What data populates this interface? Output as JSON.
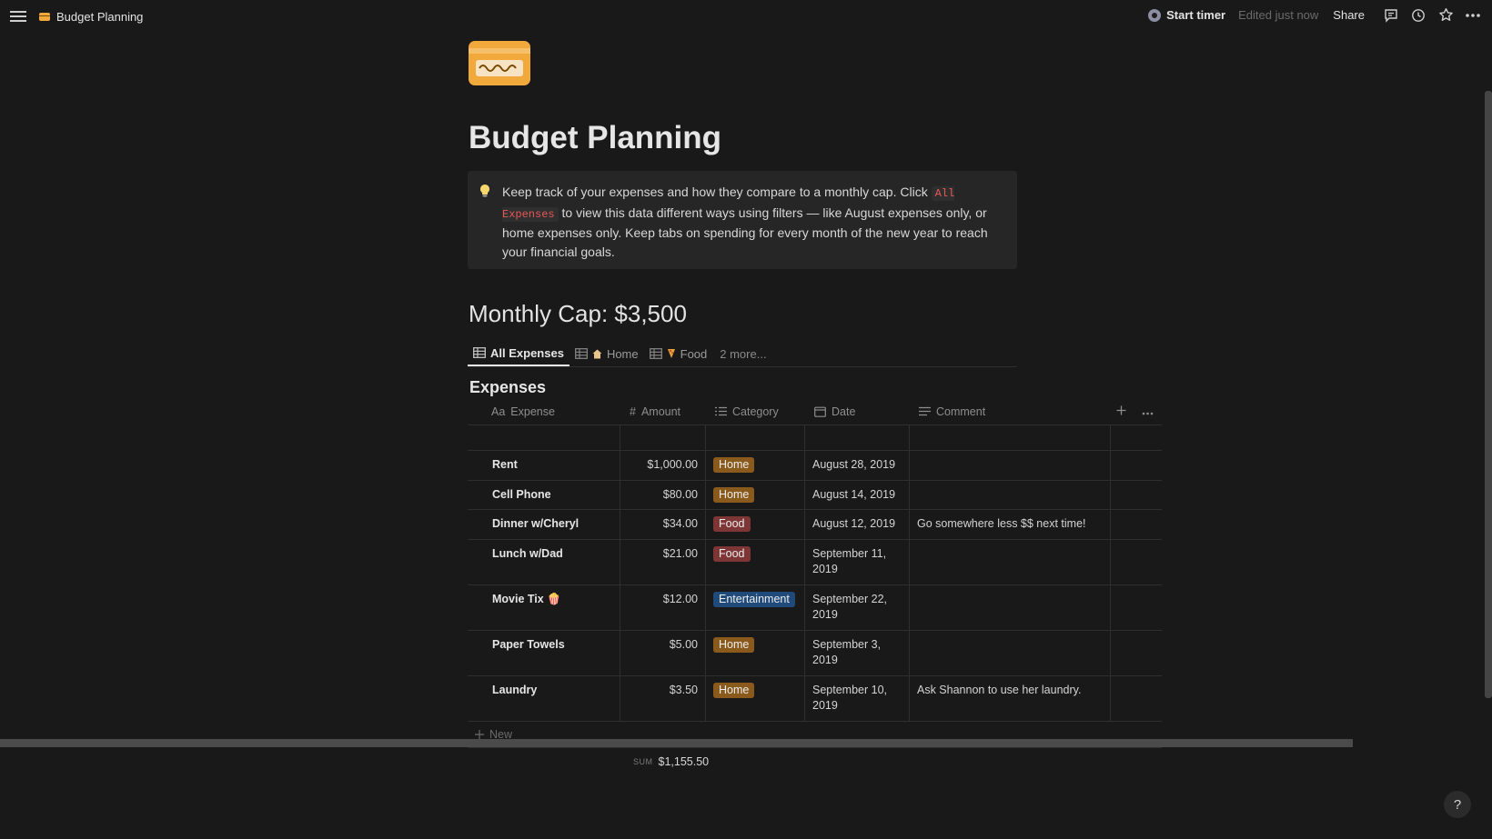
{
  "topbar": {
    "breadcrumb": "Budget Planning",
    "timer_label": "Start timer",
    "edited": "Edited just now",
    "share": "Share"
  },
  "page": {
    "title": "Budget Planning",
    "callout": {
      "text_before": "Keep track of your expenses and how they compare to a monthly cap. Click ",
      "code": "All Expenses",
      "text_after": " to view this data different ways using filters — like August expenses only, or home expenses only. Keep tabs on spending for every month of the new year to reach your financial goals."
    },
    "cap_heading": "Monthly Cap: $3,500"
  },
  "tabs": {
    "all": "All Expenses",
    "home": "Home",
    "food": "Food",
    "more": "2 more..."
  },
  "database": {
    "title": "Expenses",
    "columns": {
      "expense_icon": "Aa",
      "expense": "Expense",
      "amount": "Amount",
      "category": "Category",
      "date": "Date",
      "comment": "Comment"
    },
    "rows": [
      {
        "expense": "Rent",
        "amount": "$1,000.00",
        "category": "Home",
        "date": "August 28, 2019",
        "comment": ""
      },
      {
        "expense": "Cell Phone",
        "amount": "$80.00",
        "category": "Home",
        "date": "August 14, 2019",
        "comment": ""
      },
      {
        "expense": "Dinner w/Cheryl",
        "amount": "$34.00",
        "category": "Food",
        "date": "August 12, 2019",
        "comment": "Go somewhere less $$ next time!"
      },
      {
        "expense": "Lunch w/Dad",
        "amount": "$21.00",
        "category": "Food",
        "date": "September 11, 2019",
        "comment": ""
      },
      {
        "expense": "Movie Tix 🍿",
        "amount": "$12.00",
        "category": "Entertainment",
        "date": "September 22, 2019",
        "comment": ""
      },
      {
        "expense": "Paper Towels",
        "amount": "$5.00",
        "category": "Home",
        "date": "September 3, 2019",
        "comment": ""
      },
      {
        "expense": "Laundry",
        "amount": "$3.50",
        "category": "Home",
        "date": "September 10, 2019",
        "comment": "Ask Shannon to use her laundry."
      }
    ],
    "new_label": "New",
    "sum_label": "SUM",
    "sum_value": "$1,155.50"
  },
  "colors": {
    "home": "#8a5a1c",
    "food": "#7e3535",
    "entertainment": "#1f4a7a",
    "accent_card": "#f2a93b"
  },
  "help": "?"
}
